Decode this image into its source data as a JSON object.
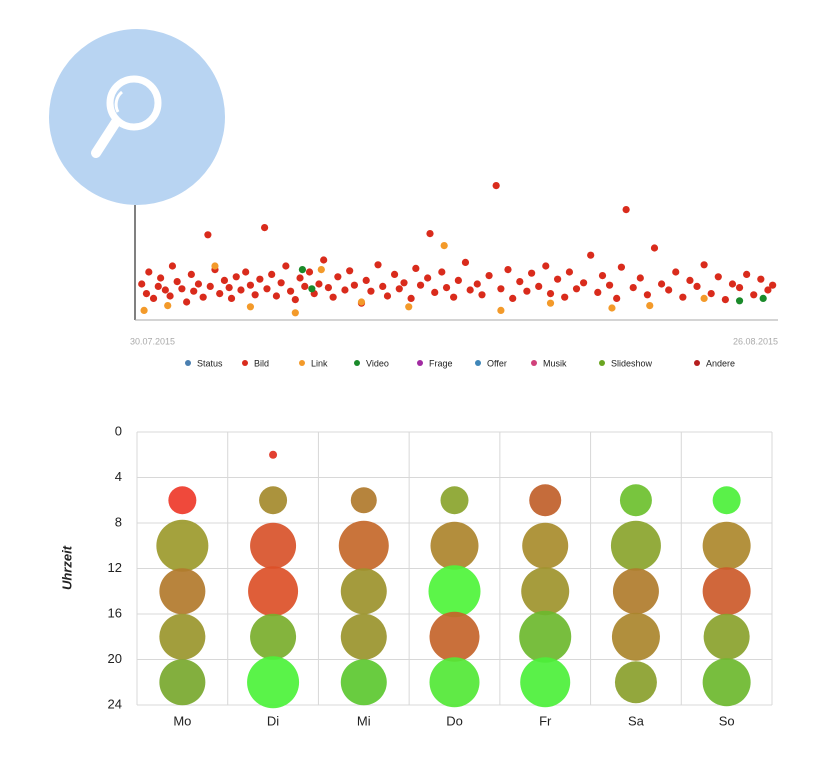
{
  "chart_data": [
    {
      "type": "scatter",
      "xlim": [
        0,
        27
      ],
      "ylim": [
        0,
        115
      ],
      "xticks": [
        {
          "value": 0,
          "label": "30.07.2015"
        },
        {
          "value": 27,
          "label": "26.08.2015"
        }
      ],
      "series": [
        {
          "name": "Status",
          "color": "#4a7fb0",
          "x": [],
          "values": []
        },
        {
          "name": "Bild",
          "color": "#d92b1c",
          "x": [
            0.2,
            0.4,
            0.5,
            0.7,
            0.9,
            1.0,
            1.2,
            1.4,
            1.5,
            1.7,
            1.9,
            2.1,
            2.3,
            2.4,
            2.6,
            2.8,
            3.0,
            3.1,
            3.3,
            3.5,
            3.7,
            3.9,
            4.0,
            4.2,
            4.4,
            4.6,
            4.8,
            5.0,
            5.2,
            5.4,
            5.5,
            5.7,
            5.9,
            6.1,
            6.3,
            6.5,
            6.7,
            6.9,
            7.1,
            7.3,
            7.5,
            7.7,
            7.9,
            8.1,
            8.3,
            8.5,
            8.8,
            9.0,
            9.2,
            9.5,
            9.7,
            9.9,
            10.2,
            10.4,
            10.6,
            10.9,
            11.1,
            11.3,
            11.6,
            11.8,
            12.0,
            12.3,
            12.4,
            12.6,
            12.9,
            13.1,
            13.4,
            13.6,
            13.9,
            14.1,
            14.4,
            14.6,
            14.9,
            15.2,
            15.4,
            15.7,
            15.9,
            16.2,
            16.5,
            16.7,
            17.0,
            17.3,
            17.5,
            17.8,
            18.1,
            18.3,
            18.6,
            18.9,
            19.2,
            19.5,
            19.7,
            20.0,
            20.3,
            20.5,
            20.7,
            21.0,
            21.3,
            21.6,
            21.9,
            22.2,
            22.5,
            22.8,
            23.1,
            23.4,
            23.7,
            24.0,
            24.3,
            24.6,
            24.9,
            25.2,
            25.5,
            25.8,
            26.1,
            26.4,
            26.7,
            26.9
          ],
          "values": [
            30,
            22,
            40,
            18,
            28,
            35,
            25,
            20,
            45,
            32,
            26,
            15,
            38,
            24,
            30,
            19,
            71,
            28,
            42,
            22,
            33,
            27,
            18,
            36,
            25,
            40,
            29,
            21,
            34,
            77,
            26,
            38,
            20,
            31,
            45,
            24,
            17,
            35,
            28,
            40,
            22,
            30,
            50,
            27,
            19,
            36,
            25,
            41,
            29,
            14,
            33,
            24,
            46,
            28,
            20,
            38,
            26,
            31,
            18,
            43,
            29,
            35,
            72,
            23,
            40,
            27,
            19,
            33,
            48,
            25,
            30,
            21,
            37,
            112,
            26,
            42,
            18,
            32,
            24,
            39,
            28,
            45,
            22,
            34,
            19,
            40,
            26,
            31,
            54,
            23,
            37,
            29,
            18,
            44,
            92,
            27,
            35,
            21,
            60,
            30,
            25,
            40,
            19,
            33,
            28,
            46,
            22,
            36,
            17,
            30,
            27,
            38,
            21,
            34,
            25,
            29
          ]
        },
        {
          "name": "Link",
          "color": "#f39a2a",
          "x": [
            0.3,
            1.3,
            3.3,
            4.8,
            6.7,
            7.8,
            9.5,
            11.5,
            13.0,
            15.4,
            17.5,
            20.1,
            21.7,
            24.0
          ],
          "values": [
            8,
            12,
            45,
            11,
            6,
            42,
            15,
            11,
            62,
            8,
            14,
            10,
            12,
            18
          ]
        },
        {
          "name": "Video",
          "color": "#1a8a2a",
          "x": [
            7.0,
            7.4,
            25.5,
            26.5
          ],
          "values": [
            42,
            26,
            16,
            18
          ]
        },
        {
          "name": "Frage",
          "color": "#a12ba1",
          "x": [],
          "values": []
        },
        {
          "name": "Offer",
          "color": "#3f86b8",
          "x": [],
          "values": []
        },
        {
          "name": "Musik",
          "color": "#d0407a",
          "x": [],
          "values": []
        },
        {
          "name": "Slideshow",
          "color": "#6aa521",
          "x": [],
          "values": []
        },
        {
          "name": "Andere",
          "color": "#b51e1e",
          "x": [],
          "values": []
        }
      ]
    },
    {
      "type": "bubble",
      "y_label": "Uhrzeit",
      "categories": [
        "Mo",
        "Di",
        "Mi",
        "Do",
        "Fr",
        "Sa",
        "So"
      ],
      "ylim": [
        0,
        24
      ],
      "yticks": [
        0,
        4,
        8,
        12,
        16,
        20,
        24
      ],
      "invert_y": true,
      "grid": true,
      "series": [
        {
          "y": [
            6,
            10,
            14,
            18,
            22
          ],
          "size": [
            28,
            52,
            46,
            46,
            46
          ],
          "colors": [
            "#ee3a2a",
            "#9c9a2c",
            "#b27a2c",
            "#9a962c",
            "#78a82e"
          ]
        },
        {
          "y": [
            2,
            6,
            10,
            14,
            18,
            22
          ],
          "size": [
            8,
            28,
            46,
            50,
            46,
            52
          ],
          "colors": [
            "#e03020",
            "#a48a2c",
            "#d8522a",
            "#dc5028",
            "#7aae2c",
            "#4cf23a"
          ]
        },
        {
          "y": [
            6,
            10,
            14,
            18,
            22
          ],
          "size": [
            26,
            50,
            46,
            46,
            46
          ],
          "colors": [
            "#b07a2c",
            "#c4682a",
            "#9c922c",
            "#9a942c",
            "#5cc830"
          ]
        },
        {
          "y": [
            6,
            10,
            14,
            18,
            22
          ],
          "size": [
            28,
            48,
            52,
            50,
            50
          ],
          "colors": [
            "#8aa42c",
            "#ac842c",
            "#4ef43a",
            "#c4642a",
            "#52e836"
          ]
        },
        {
          "y": [
            6,
            10,
            14,
            18,
            22
          ],
          "size": [
            32,
            46,
            48,
            52,
            50
          ],
          "colors": [
            "#c0602a",
            "#a88c2c",
            "#9e942c",
            "#6cb82e",
            "#4cf03a"
          ]
        },
        {
          "y": [
            6,
            10,
            14,
            18,
            22
          ],
          "size": [
            32,
            50,
            46,
            48,
            42
          ],
          "colors": [
            "#6cc02e",
            "#8aa42c",
            "#b07c2c",
            "#aa862c",
            "#8aa02c"
          ]
        },
        {
          "y": [
            6,
            10,
            14,
            18,
            22
          ],
          "size": [
            28,
            48,
            48,
            46,
            48
          ],
          "colors": [
            "#4cf03a",
            "#ac882c",
            "#cc5a2a",
            "#8aa22c",
            "#6cb82e"
          ]
        }
      ]
    }
  ]
}
